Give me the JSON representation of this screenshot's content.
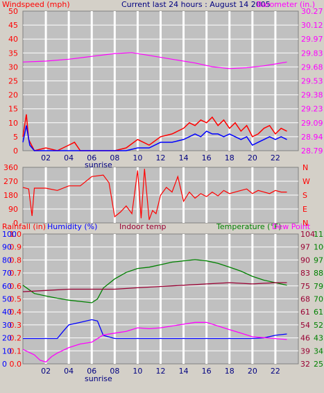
{
  "header": {
    "left_label": "Windspeed (mph)",
    "center_label": "Current last 24 hours : August 14 2005",
    "right_label": "Barometer (in.)"
  },
  "colors": {
    "panel_bg": "#c0c0c0",
    "grid": "#ffffff",
    "wind_gust": "#ff0000",
    "wind_avg": "#0000ff",
    "barometer": "#ff00ff",
    "direction": "#ff0000",
    "humidity": "#0000ff",
    "temperature": "#008000",
    "indoor_temp": "#990033",
    "dew_point": "#ff00ff",
    "rain": "#ff0000"
  },
  "bottom_header": {
    "rain_label": "Rainfall (in)",
    "humidity_label": "Humidity (%)",
    "indoor_label": "Indoor temp",
    "temp_label": "Temperature (°F)",
    "dew_label": "Dew Point"
  },
  "annotations": {
    "sunrise": "sunrise"
  },
  "chart_data": [
    {
      "type": "line",
      "title": "Windspeed / Barometer",
      "x_ticks": [
        "02",
        "04",
        "06",
        "08",
        "10",
        "12",
        "14",
        "16",
        "18",
        "20",
        "22"
      ],
      "y_left_ticks": [
        "0",
        "5",
        "10",
        "15",
        "20",
        "25",
        "30",
        "35",
        "40",
        "45",
        "50"
      ],
      "y_left_range": [
        0,
        50
      ],
      "y_right_ticks": [
        "28.79",
        "28.94",
        "29.09",
        "29.23",
        "29.38",
        "29.53",
        "29.68",
        "29.83",
        "29.97",
        "30.12",
        "30.27"
      ],
      "y_right_range": [
        28.79,
        30.27
      ],
      "series": [
        {
          "name": "Barometer",
          "axis": "right",
          "points": [
            [
              0,
              29.73
            ],
            [
              2,
              29.74
            ],
            [
              4,
              29.76
            ],
            [
              6,
              29.79
            ],
            [
              8,
              29.82
            ],
            [
              9.5,
              29.83
            ],
            [
              11,
              29.8
            ],
            [
              13,
              29.76
            ],
            [
              15,
              29.72
            ],
            [
              16.5,
              29.68
            ],
            [
              18,
              29.66
            ],
            [
              19.5,
              29.67
            ],
            [
              21,
              29.69
            ],
            [
              22,
              29.71
            ],
            [
              23,
              29.73
            ]
          ]
        },
        {
          "name": "Windspeed gust",
          "axis": "left",
          "points": [
            [
              0,
              5
            ],
            [
              0.3,
              13
            ],
            [
              0.5,
              4
            ],
            [
              1,
              0
            ],
            [
              2,
              1
            ],
            [
              3,
              0
            ],
            [
              4,
              2
            ],
            [
              4.5,
              3
            ],
            [
              5,
              0
            ],
            [
              8,
              0
            ],
            [
              9,
              1
            ],
            [
              10,
              4
            ],
            [
              10.5,
              3
            ],
            [
              11,
              2
            ],
            [
              12,
              5
            ],
            [
              13,
              6
            ],
            [
              14,
              8
            ],
            [
              14.5,
              10
            ],
            [
              15,
              9
            ],
            [
              15.5,
              11
            ],
            [
              16,
              10
            ],
            [
              16.5,
              12
            ],
            [
              17,
              9
            ],
            [
              17.5,
              11
            ],
            [
              18,
              8
            ],
            [
              18.5,
              10
            ],
            [
              19,
              7
            ],
            [
              19.5,
              9
            ],
            [
              20,
              5
            ],
            [
              20.5,
              6
            ],
            [
              21,
              8
            ],
            [
              21.5,
              9
            ],
            [
              22,
              6
            ],
            [
              22.5,
              8
            ],
            [
              23,
              7
            ]
          ]
        },
        {
          "name": "Windspeed avg",
          "axis": "left",
          "points": [
            [
              0,
              3
            ],
            [
              0.3,
              9
            ],
            [
              0.6,
              2
            ],
            [
              1,
              0
            ],
            [
              4,
              0
            ],
            [
              5,
              0
            ],
            [
              9,
              0
            ],
            [
              10,
              1
            ],
            [
              11,
              1
            ],
            [
              12,
              3
            ],
            [
              13,
              3
            ],
            [
              14,
              4
            ],
            [
              14.5,
              5
            ],
            [
              15,
              6
            ],
            [
              15.5,
              5
            ],
            [
              16,
              7
            ],
            [
              16.5,
              6
            ],
            [
              17,
              6
            ],
            [
              17.5,
              5
            ],
            [
              18,
              6
            ],
            [
              18.5,
              5
            ],
            [
              19,
              4
            ],
            [
              19.5,
              5
            ],
            [
              20,
              2
            ],
            [
              20.5,
              3
            ],
            [
              21,
              4
            ],
            [
              21.5,
              5
            ],
            [
              22,
              4
            ],
            [
              22.5,
              5
            ],
            [
              23,
              4
            ]
          ]
        }
      ],
      "annotations": [
        "sunrise"
      ]
    },
    {
      "type": "line",
      "title": "Wind direction",
      "y_left_ticks": [
        "0",
        "90",
        "180",
        "270",
        "360"
      ],
      "y_left_range": [
        0,
        360
      ],
      "y_right_ticks": [
        "N",
        "E",
        "S",
        "W",
        "N"
      ],
      "series": [
        {
          "name": "Direction",
          "points": [
            [
              0,
              230
            ],
            [
              0.5,
              220
            ],
            [
              0.8,
              45
            ],
            [
              1,
              225
            ],
            [
              2,
              225
            ],
            [
              3,
              210
            ],
            [
              4,
              240
            ],
            [
              5,
              240
            ],
            [
              6,
              300
            ],
            [
              7,
              310
            ],
            [
              7.5,
              260
            ],
            [
              8,
              40
            ],
            [
              8.5,
              70
            ],
            [
              9,
              110
            ],
            [
              9.5,
              60
            ],
            [
              10,
              340
            ],
            [
              10.3,
              30
            ],
            [
              10.6,
              350
            ],
            [
              11,
              20
            ],
            [
              11.3,
              80
            ],
            [
              11.6,
              60
            ],
            [
              12,
              180
            ],
            [
              12.5,
              230
            ],
            [
              13,
              200
            ],
            [
              13.5,
              300
            ],
            [
              14,
              140
            ],
            [
              14.5,
              200
            ],
            [
              15,
              160
            ],
            [
              15.5,
              190
            ],
            [
              16,
              170
            ],
            [
              16.5,
              200
            ],
            [
              17,
              175
            ],
            [
              17.5,
              210
            ],
            [
              18,
              190
            ],
            [
              18.5,
              200
            ],
            [
              19,
              210
            ],
            [
              19.5,
              220
            ],
            [
              20,
              190
            ],
            [
              20.5,
              210
            ],
            [
              21,
              200
            ],
            [
              21.5,
              190
            ],
            [
              22,
              210
            ],
            [
              22.5,
              200
            ],
            [
              23,
              200
            ]
          ]
        }
      ]
    },
    {
      "type": "line",
      "title": "Rain / Humidity / Temperature / Dew Point",
      "x_ticks": [
        "02",
        "04",
        "06",
        "08",
        "10",
        "12",
        "14",
        "16",
        "18",
        "20",
        "22"
      ],
      "y_left_rain_ticks": [
        "0.0",
        "0.1",
        "0.2",
        "0.3",
        "0.4",
        "0.5",
        "0.6",
        "0.7",
        "0.8",
        "0.9",
        "1.0"
      ],
      "y_left_humidity_ticks": [
        "0",
        "10",
        "20",
        "30",
        "40",
        "50",
        "60",
        "70",
        "80",
        "90",
        "100"
      ],
      "y_right_temp_ticks": [
        "32",
        "39",
        "46",
        "54",
        "61",
        "68",
        "75",
        "83",
        "90",
        "97",
        "104"
      ],
      "y_right_range": [
        32,
        104
      ],
      "y_right2_temp_ticks": [
        "25",
        "34",
        "43",
        "52",
        "61",
        "70",
        "79",
        "88",
        "97",
        "106",
        "115"
      ],
      "series": [
        {
          "name": "Temperature",
          "axis": "right",
          "points": [
            [
              0,
              75.6
            ],
            [
              1,
              71
            ],
            [
              2,
              69.6
            ],
            [
              3,
              68.4
            ],
            [
              4,
              67.3
            ],
            [
              5,
              66.6
            ],
            [
              6,
              65.9
            ],
            [
              6.5,
              68
            ],
            [
              7,
              74
            ],
            [
              8,
              79.1
            ],
            [
              9,
              82.7
            ],
            [
              10,
              84.9
            ],
            [
              11,
              85.6
            ],
            [
              12,
              87
            ],
            [
              13,
              88.4
            ],
            [
              14,
              89.1
            ],
            [
              15,
              89.8
            ],
            [
              16,
              89.1
            ],
            [
              17,
              87.7
            ],
            [
              18,
              85.6
            ],
            [
              19,
              83.4
            ],
            [
              20,
              80.5
            ],
            [
              21,
              78.4
            ],
            [
              22,
              77
            ],
            [
              23,
              75.6
            ]
          ]
        },
        {
          "name": "Indoor temp",
          "axis": "right",
          "points": [
            [
              0,
              72
            ],
            [
              2,
              72.7
            ],
            [
              4,
              73.4
            ],
            [
              6,
              73.4
            ],
            [
              8,
              73.4
            ],
            [
              10,
              74.2
            ],
            [
              12,
              74.9
            ],
            [
              14,
              75.6
            ],
            [
              16,
              76.3
            ],
            [
              18,
              77
            ],
            [
              20,
              76.3
            ],
            [
              22,
              77
            ],
            [
              23,
              77
            ]
          ]
        },
        {
          "name": "Humidity",
          "axis": "left",
          "points": [
            [
              0,
              19.5
            ],
            [
              2,
              19.5
            ],
            [
              3,
              19.5
            ],
            [
              3.5,
              25
            ],
            [
              4,
              30
            ],
            [
              5,
              32
            ],
            [
              6,
              34
            ],
            [
              6.5,
              33
            ],
            [
              7,
              22
            ],
            [
              8,
              19.5
            ],
            [
              10,
              19.5
            ],
            [
              12,
              19.5
            ],
            [
              14,
              19.5
            ],
            [
              16,
              19.5
            ],
            [
              18,
              19.5
            ],
            [
              20,
              19.5
            ],
            [
              21,
              20
            ],
            [
              22,
              22
            ],
            [
              23,
              23
            ]
          ]
        },
        {
          "name": "Dew Point",
          "axis": "right",
          "points": [
            [
              0,
              40
            ],
            [
              1,
              37
            ],
            [
              1.5,
              34
            ],
            [
              2,
              33
            ],
            [
              2.5,
              36
            ],
            [
              3,
              38
            ],
            [
              4,
              41
            ],
            [
              5,
              43
            ],
            [
              6,
              44
            ],
            [
              7,
              48
            ],
            [
              8,
              49
            ],
            [
              9,
              50
            ],
            [
              10,
              52
            ],
            [
              11,
              51.5
            ],
            [
              12,
              52
            ],
            [
              13,
              53
            ],
            [
              14,
              54
            ],
            [
              15,
              55
            ],
            [
              16,
              55
            ],
            [
              17,
              53
            ],
            [
              18,
              51
            ],
            [
              19,
              49
            ],
            [
              20,
              47
            ],
            [
              21,
              46.5
            ],
            [
              22,
              46
            ],
            [
              23,
              45.5
            ]
          ]
        }
      ],
      "annotations": [
        "sunrise"
      ]
    }
  ]
}
